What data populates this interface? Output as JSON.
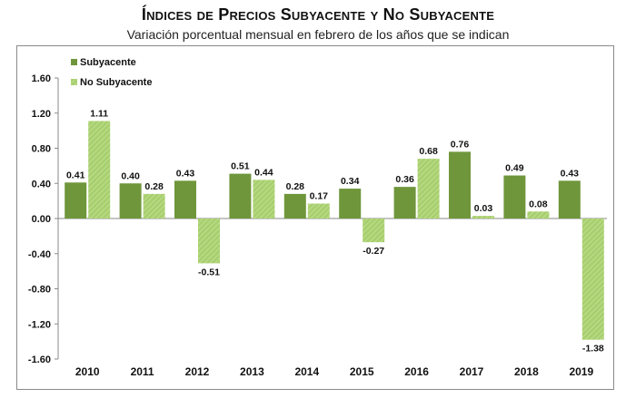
{
  "chart_data": {
    "type": "bar",
    "title": "Índices de Precios Subyacente y No Subyacente",
    "subtitle": "Variación porcentual mensual en febrero de los años que se indican",
    "categories": [
      "2010",
      "2011",
      "2012",
      "2013",
      "2014",
      "2015",
      "2016",
      "2017",
      "2018",
      "2019"
    ],
    "series": [
      {
        "name": "Subyacente",
        "color": "#6f963b",
        "values": [
          0.41,
          0.4,
          0.43,
          0.51,
          0.28,
          0.34,
          0.36,
          0.76,
          0.49,
          0.43
        ]
      },
      {
        "name": "No Subyacente",
        "color": "#a8cf6e",
        "values": [
          1.11,
          0.28,
          -0.51,
          0.44,
          0.17,
          -0.27,
          0.68,
          0.03,
          0.08,
          -1.38
        ]
      }
    ],
    "ylim": [
      -1.6,
      1.6
    ],
    "yticks": [
      "1.60",
      "1.20",
      "0.80",
      "0.40",
      "0.00",
      "-0.40",
      "-0.80",
      "-1.20",
      "-1.60"
    ],
    "ytick_values": [
      1.6,
      1.2,
      0.8,
      0.4,
      0.0,
      -0.4,
      -0.8,
      -1.2,
      -1.6
    ],
    "data_labels": [
      [
        "0.41",
        "0.40",
        "0.43",
        "0.51",
        "0.28",
        "0.34",
        "0.36",
        "0.76",
        "0.49",
        "0.43"
      ],
      [
        "1.11",
        "0.28",
        "-0.51",
        "0.44",
        "0.17",
        "-0.27",
        "0.68",
        "0.03",
        "0.08",
        "-1.38"
      ]
    ],
    "legend_position": "top-left",
    "xlabel": "",
    "ylabel": ""
  }
}
